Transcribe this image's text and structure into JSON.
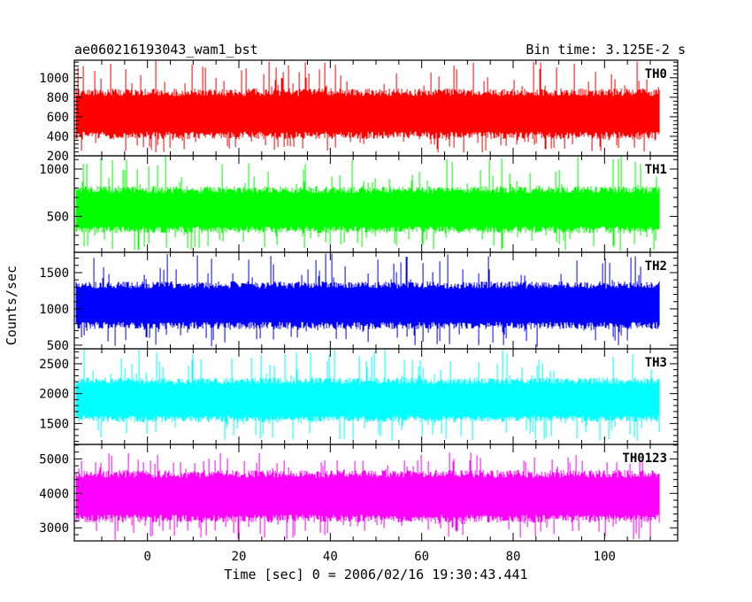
{
  "chart_data": {
    "type": "line",
    "title": "ae060216193043_wam1_bst",
    "subtitle": "Bin time: 3.125E-2 s",
    "xlabel": "Time [sec] 0 = 2006/02/16 19:30:43.441",
    "ylabel": "Counts/sec",
    "xlim": [
      -16,
      116
    ],
    "data_x_range": [
      -15.6,
      112.0
    ],
    "bin_time_s": 0.03125,
    "x_ticks": [
      0,
      20,
      40,
      60,
      80,
      100
    ],
    "x_tick_labels": [
      "0",
      "20",
      "40",
      "60",
      "80",
      "100"
    ],
    "grid": false,
    "panels": [
      {
        "name": "TH0",
        "color": "#ff0000",
        "ylim": [
          200,
          1180
        ],
        "y_ticks": [
          200,
          400,
          600,
          800,
          1000
        ],
        "y_tick_labels": [
          "200",
          "400",
          "600",
          "800",
          "1000"
        ],
        "typical_low": 370,
        "typical_high": 890,
        "extreme_low": 230,
        "extreme_high": 1180
      },
      {
        "name": "TH1",
        "color": "#00ff00",
        "ylim": [
          120,
          1140
        ],
        "y_ticks": [
          500,
          1000
        ],
        "y_tick_labels": [
          "500",
          "1000"
        ],
        "typical_low": 320,
        "typical_high": 820,
        "extreme_low": 130,
        "extreme_high": 1140
      },
      {
        "name": "TH2",
        "color": "#0000ff",
        "ylim": [
          450,
          1780
        ],
        "y_ticks": [
          500,
          1000,
          1500
        ],
        "y_tick_labels": [
          "500",
          "1000",
          "1500"
        ],
        "typical_low": 720,
        "typical_high": 1380,
        "extreme_low": 480,
        "extreme_high": 1780
      },
      {
        "name": "TH3",
        "color": "#00ffff",
        "ylim": [
          1150,
          2750
        ],
        "y_ticks": [
          1500,
          2000,
          2500
        ],
        "y_tick_labels": [
          "1500",
          "2000",
          "2500"
        ],
        "typical_low": 1520,
        "typical_high": 2270,
        "extreme_low": 1200,
        "extreme_high": 2740
      },
      {
        "name": "TH0123",
        "color": "#ff00ff",
        "ylim": [
          2620,
          5420
        ],
        "y_ticks": [
          3000,
          4000,
          5000
        ],
        "y_tick_labels": [
          "3000",
          "4000",
          "5000"
        ],
        "typical_low": 3150,
        "typical_high": 4680,
        "extreme_low": 2650,
        "extreme_high": 5200
      }
    ]
  }
}
